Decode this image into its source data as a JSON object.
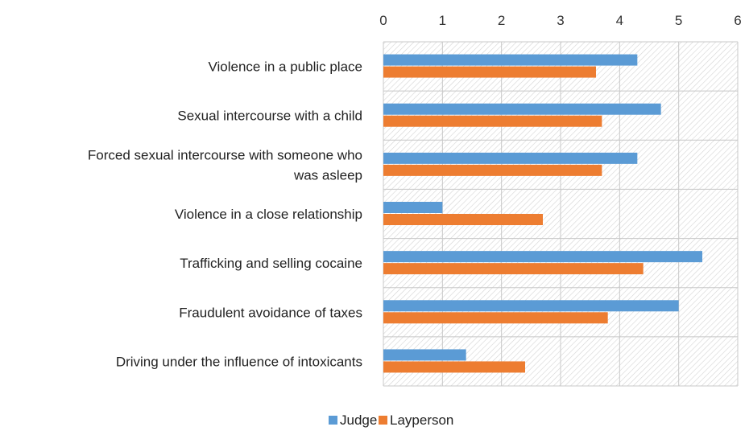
{
  "chart_data": {
    "type": "bar",
    "orientation": "horizontal",
    "categories": [
      [
        "Violence in a public place"
      ],
      [
        "Sexual intercourse with a child"
      ],
      [
        "Forced sexual intercourse with someone who",
        "was asleep"
      ],
      [
        "Violence in a close relationship"
      ],
      [
        "Trafficking and selling cocaine"
      ],
      [
        "Fraudulent avoidance of taxes"
      ],
      [
        "Driving under the influence of intoxicants"
      ]
    ],
    "series": [
      {
        "name": "Judge",
        "color": "#5b9bd5",
        "values": [
          4.3,
          4.7,
          4.3,
          1.0,
          5.4,
          5.0,
          1.4
        ]
      },
      {
        "name": "Layperson",
        "color": "#ed7d31",
        "values": [
          3.6,
          3.7,
          3.7,
          2.7,
          4.4,
          3.8,
          2.4
        ]
      }
    ],
    "xlim": [
      0,
      6
    ],
    "xticks": [
      "0",
      "1",
      "2",
      "3",
      "4",
      "5",
      "6"
    ],
    "x_axis_position": "top",
    "grid": true,
    "plot_background": "hatched",
    "legend_position": "bottom"
  }
}
